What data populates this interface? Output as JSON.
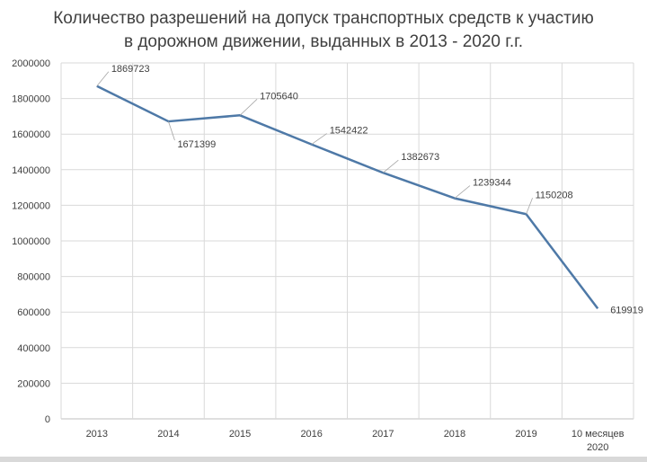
{
  "chart_data": {
    "type": "line",
    "title_lines": [
      "Количество разрешений на допуск транспортных средств к участию",
      "в дорожном движении, выданных в 2013 - 2020 г.г."
    ],
    "categories": [
      "2013",
      "2014",
      "2015",
      "2016",
      "2017",
      "2018",
      "2019",
      "10 месяцев 2020"
    ],
    "category_lines": [
      [
        "2013"
      ],
      [
        "2014"
      ],
      [
        "2015"
      ],
      [
        "2016"
      ],
      [
        "2017"
      ],
      [
        "2018"
      ],
      [
        "2019"
      ],
      [
        "10 месяцев",
        "2020"
      ]
    ],
    "series": [
      {
        "values": [
          1869723,
          1671399,
          1705640,
          1542422,
          1382673,
          1239344,
          1150208,
          619919
        ],
        "data_labels": [
          "1869723",
          "1671399",
          "1705640",
          "1542422",
          "1382673",
          "1239344",
          "1150208",
          "619919"
        ],
        "color": "#4e79a7"
      }
    ],
    "y_ticks": [
      "0",
      "200000",
      "400000",
      "600000",
      "800000",
      "1000000",
      "1200000",
      "1400000",
      "1600000",
      "1800000",
      "2000000"
    ],
    "ylim": [
      0,
      2000000
    ],
    "grid": true,
    "legend": "none"
  }
}
